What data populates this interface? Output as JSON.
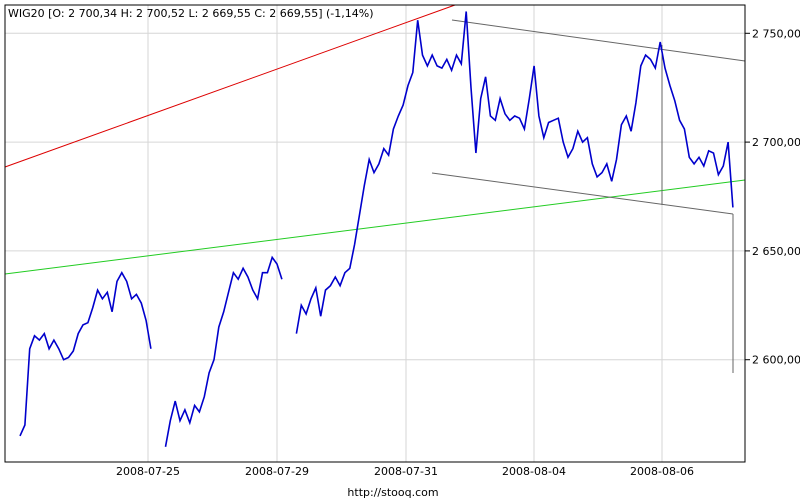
{
  "chart_data": {
    "type": "line",
    "title": "WIG20 [O: 2 700,34  H: 2 700,52  L: 2 669,55  C: 2 669,55] (-1,14%)",
    "source": "http://stooq.com",
    "x_ticks": [
      "2008-07-25",
      "2008-07-29",
      "2008-07-31",
      "2008-08-04",
      "2008-08-06"
    ],
    "y_ticks": [
      "2 750,00",
      "2 700,00",
      "2 650,00",
      "2 600,00"
    ],
    "y_tick_values": [
      2750,
      2700,
      2650,
      2600
    ],
    "ylim": [
      2553,
      2763
    ],
    "grid": true,
    "colors": {
      "series": "#0000cc",
      "red_line": "#dd0000",
      "green_line": "#22cc22",
      "gray_line": "#666666",
      "grid": "#d6d6d6",
      "frame": "#000000"
    },
    "series": [
      {
        "values": [
          [
            0,
            2565
          ],
          [
            0.5,
            2570
          ],
          [
            1,
            2605
          ],
          [
            1.5,
            2611
          ],
          [
            2,
            2609
          ],
          [
            2.5,
            2612
          ],
          [
            3,
            2605
          ],
          [
            3.5,
            2609
          ],
          [
            4,
            2605
          ],
          [
            4.5,
            2600
          ],
          [
            5,
            2601
          ],
          [
            5.5,
            2604
          ],
          [
            6,
            2612
          ],
          [
            6.5,
            2616
          ],
          [
            7,
            2617
          ],
          [
            7.5,
            2624
          ],
          [
            8,
            2632
          ],
          [
            8.5,
            2628
          ],
          [
            9,
            2631
          ],
          [
            9.5,
            2622
          ],
          [
            10,
            2636
          ],
          [
            10.5,
            2640
          ],
          [
            11,
            2636
          ],
          [
            11.5,
            2628
          ],
          [
            12,
            2630
          ],
          [
            12.5,
            2626
          ],
          [
            13,
            2618
          ],
          [
            13.5,
            2605
          ],
          [
            15,
            2560
          ],
          [
            15.5,
            2572
          ],
          [
            16,
            2581
          ],
          [
            16.5,
            2572
          ],
          [
            17,
            2577
          ],
          [
            17.5,
            2571
          ],
          [
            18,
            2579
          ],
          [
            18.5,
            2576
          ],
          [
            19,
            2583
          ],
          [
            19.5,
            2594
          ],
          [
            20,
            2600
          ],
          [
            20.5,
            2615
          ],
          [
            21,
            2622
          ],
          [
            21.5,
            2631
          ],
          [
            22,
            2640
          ],
          [
            22.5,
            2637
          ],
          [
            23,
            2642
          ],
          [
            23.5,
            2638
          ],
          [
            24,
            2632
          ],
          [
            24.5,
            2628
          ],
          [
            25,
            2640
          ],
          [
            25.5,
            2640
          ],
          [
            26,
            2647
          ],
          [
            26.5,
            2644
          ],
          [
            27,
            2637
          ],
          [
            28.5,
            2612
          ],
          [
            29,
            2625
          ],
          [
            29.5,
            2621
          ],
          [
            30,
            2628
          ],
          [
            30.5,
            2633
          ],
          [
            31,
            2620
          ],
          [
            31.5,
            2632
          ],
          [
            32,
            2634
          ],
          [
            32.5,
            2638
          ],
          [
            33,
            2634
          ],
          [
            33.5,
            2640
          ],
          [
            34,
            2642
          ],
          [
            34.5,
            2653
          ],
          [
            35.5,
            2680
          ],
          [
            36,
            2692
          ],
          [
            36.5,
            2686
          ],
          [
            37,
            2690
          ],
          [
            37.5,
            2697
          ],
          [
            38,
            2694
          ],
          [
            38.5,
            2706
          ],
          [
            39,
            2712
          ],
          [
            39.5,
            2717
          ],
          [
            40,
            2726
          ],
          [
            40.5,
            2732
          ],
          [
            41,
            2756
          ],
          [
            41.5,
            2740
          ],
          [
            42,
            2735
          ],
          [
            42.5,
            2740
          ],
          [
            43,
            2735
          ],
          [
            43.5,
            2734
          ],
          [
            44,
            2738
          ],
          [
            44.5,
            2733
          ],
          [
            45,
            2740
          ],
          [
            45.5,
            2736
          ],
          [
            46,
            2760
          ],
          [
            46.5,
            2725
          ],
          [
            47,
            2695
          ],
          [
            47.5,
            2720
          ],
          [
            48,
            2730
          ],
          [
            48.5,
            2712
          ],
          [
            49,
            2710
          ],
          [
            49.5,
            2720
          ],
          [
            50,
            2713
          ],
          [
            50.5,
            2710
          ],
          [
            51,
            2712
          ],
          [
            51.5,
            2711
          ],
          [
            52,
            2706
          ],
          [
            52.5,
            2720
          ],
          [
            53,
            2735
          ],
          [
            53.5,
            2712
          ],
          [
            54,
            2702
          ],
          [
            54.5,
            2709
          ],
          [
            55,
            2710
          ],
          [
            55.5,
            2711
          ],
          [
            56,
            2700
          ],
          [
            56.5,
            2693
          ],
          [
            57,
            2697
          ],
          [
            57.5,
            2705
          ],
          [
            58,
            2700
          ],
          [
            58.5,
            2702
          ],
          [
            59,
            2690
          ],
          [
            59.5,
            2684
          ],
          [
            60,
            2686
          ],
          [
            60.5,
            2690
          ],
          [
            61,
            2682
          ],
          [
            61.5,
            2692
          ],
          [
            62,
            2708
          ],
          [
            62.5,
            2712
          ],
          [
            63,
            2705
          ],
          [
            63.5,
            2718
          ],
          [
            64,
            2735
          ],
          [
            64.5,
            2740
          ],
          [
            65,
            2738
          ],
          [
            65.5,
            2734
          ],
          [
            66,
            2746
          ],
          [
            66.5,
            2734
          ],
          [
            67,
            2726
          ],
          [
            67.5,
            2719
          ],
          [
            68,
            2710
          ],
          [
            68.5,
            2706
          ],
          [
            69,
            2693
          ],
          [
            69.5,
            2690
          ],
          [
            70,
            2693
          ],
          [
            70.5,
            2689
          ],
          [
            71,
            2696
          ],
          [
            71.5,
            2695
          ],
          [
            72,
            2685
          ],
          [
            72.5,
            2689
          ],
          [
            73,
            2700
          ],
          [
            73.5,
            2670
          ]
        ]
      }
    ]
  }
}
